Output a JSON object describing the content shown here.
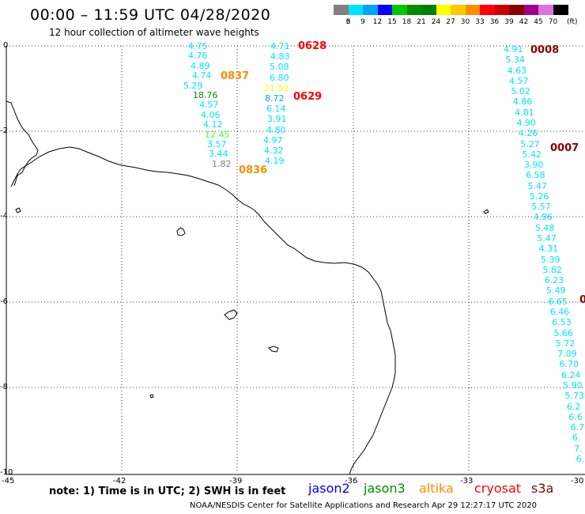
{
  "header": {
    "title": "00:00 – 11:59 UTC 04/28/2020",
    "subtitle": "12 hour collection of altimeter wave heights"
  },
  "legend": {
    "unit": "(ft)",
    "bins": [
      {
        "label": "3",
        "color": "#808080"
      },
      {
        "label": "6",
        "color": "#00e5ff"
      },
      {
        "label": "9",
        "color": "#00a2ff"
      },
      {
        "label": "12",
        "color": "#0000ff"
      },
      {
        "label": "15",
        "color": "#00c800"
      },
      {
        "label": "18",
        "color": "#008c00"
      },
      {
        "label": "21",
        "color": "#008000"
      },
      {
        "label": "24",
        "color": "#ffff00"
      },
      {
        "label": "27",
        "color": "#ffc800"
      },
      {
        "label": "30",
        "color": "#ff8c00"
      },
      {
        "label": "33",
        "color": "#ff0000"
      },
      {
        "label": "36",
        "color": "#c80000"
      },
      {
        "label": "39",
        "color": "#8b0000"
      },
      {
        "label": "42",
        "color": "#a0008c"
      },
      {
        "label": "45",
        "color": "#e070e0"
      },
      {
        "label": "70",
        "color": "#000000"
      }
    ]
  },
  "axes": {
    "lat_labels": [
      "0",
      "-2",
      "-4",
      "-6",
      "-8",
      "-10"
    ],
    "lon_labels": [
      "-45",
      "-42",
      "-39",
      "-36",
      "-33",
      "-30"
    ]
  },
  "tracks": [
    {
      "values": [
        "4.75",
        "4.76",
        "4.89",
        "4.74",
        "5.29",
        "18.76",
        "4.57",
        "4.06",
        "4.12",
        "12.45",
        "3.57",
        "3.44",
        "1.82"
      ],
      "colors": [
        "#00e5ff",
        "#00e5ff",
        "#00e5ff",
        "#00e5ff",
        "#00e5ff",
        "#008c00",
        "#00e5ff",
        "#00e5ff",
        "#00e5ff",
        "#4cff4c",
        "#00e5ff",
        "#00e5ff",
        "#808080"
      ]
    },
    {
      "values": [
        "4.71",
        "4.83",
        "5.08",
        "6.80",
        "21.52",
        "8.72",
        "6.14",
        "3.91",
        "4.80",
        "4.97",
        "4.32",
        "4.19"
      ],
      "colors": [
        "#00e5ff",
        "#00e5ff",
        "#00e5ff",
        "#00e5ff",
        "#ffff00",
        "#00a2ff",
        "#00e5ff",
        "#00e5ff",
        "#00e5ff",
        "#00e5ff",
        "#00e5ff",
        "#00e5ff"
      ]
    },
    {
      "values": [
        "4.91",
        "5.34",
        "4.63",
        "4.57",
        "5.02",
        "4.86",
        "4.81",
        "4.90",
        "4.26",
        "5.27",
        "5.42",
        "3.90",
        "6.58",
        "5.47",
        "5.26",
        "5.57",
        "4.96",
        "5.48",
        "5.47",
        "4.31",
        "5.39",
        "5.82",
        "6.23",
        "5.49",
        "6.65",
        "6.46",
        "6.53",
        "5.66",
        "5.72",
        "7.09",
        "6.70",
        "6.24",
        "5.90",
        "5.73",
        "6.2",
        "6.6",
        "6.7",
        "6.",
        "7.",
        "6."
      ],
      "color": "#00e5ff"
    }
  ],
  "pass_labels": [
    {
      "text": "0628",
      "color": "#ff0000"
    },
    {
      "text": "0837",
      "color": "#ff8c00"
    },
    {
      "text": "0629",
      "color": "#ff0000"
    },
    {
      "text": "0836",
      "color": "#ff8c00"
    },
    {
      "text": "0008",
      "color": "#8b0000"
    },
    {
      "text": "0007",
      "color": "#8b0000"
    },
    {
      "text": "0",
      "color": "#8b0000"
    }
  ],
  "note": "note:  1) Time is in UTC;  2) SWH is in feet",
  "satellites": [
    {
      "name": "jason2",
      "color": "#0000ff"
    },
    {
      "name": "jason3",
      "color": "#008c00"
    },
    {
      "name": "altika",
      "color": "#ff8c00"
    },
    {
      "name": "cryosat",
      "color": "#ff0000"
    },
    {
      "name": "s3a",
      "color": "#8b0000"
    }
  ],
  "footer": "NOAA/NESDIS Center for Satellite Applications and Research   Apr 29 12:27:17 UTC 2020"
}
